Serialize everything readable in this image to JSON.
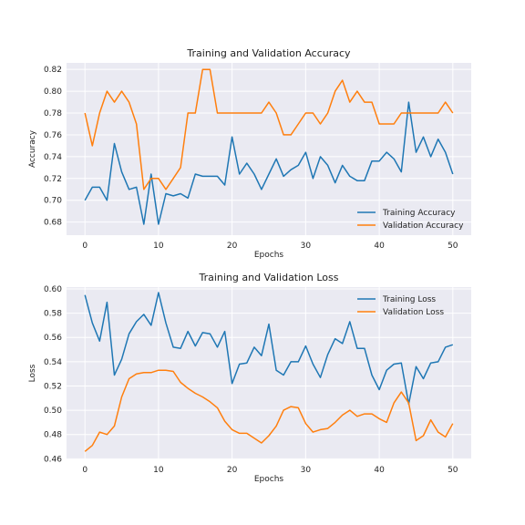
{
  "colors": {
    "plot_background": "#eaeaf2",
    "grid": "#ffffff",
    "training": "#1f77b4",
    "validation": "#ff7f0e"
  },
  "chart_data": [
    {
      "type": "line",
      "title": "Training and Validation Accuracy",
      "xlabel": "Epochs",
      "ylabel": "Accuracy",
      "xlim": [
        -2.5,
        52.5
      ],
      "ylim": [
        0.668,
        0.826
      ],
      "xticks": [
        0,
        10,
        20,
        30,
        40,
        50
      ],
      "yticks": [
        0.68,
        0.7,
        0.72,
        0.74,
        0.76,
        0.78,
        0.8,
        0.82
      ],
      "grid": true,
      "legend_position": "lower-right",
      "x": [
        0,
        1,
        2,
        3,
        4,
        5,
        6,
        7,
        8,
        9,
        10,
        11,
        12,
        13,
        14,
        15,
        16,
        17,
        18,
        19,
        20,
        21,
        22,
        23,
        24,
        25,
        26,
        27,
        28,
        29,
        30,
        31,
        32,
        33,
        34,
        35,
        36,
        37,
        38,
        39,
        40,
        41,
        42,
        43,
        44,
        45,
        46,
        47,
        48,
        49,
        50
      ],
      "series": [
        {
          "name": "Training Accuracy",
          "color": "#1f77b4",
          "values": [
            0.7,
            0.712,
            0.712,
            0.7,
            0.752,
            0.726,
            0.71,
            0.712,
            0.678,
            0.724,
            0.678,
            0.706,
            0.704,
            0.706,
            0.702,
            0.724,
            0.722,
            0.722,
            0.722,
            0.714,
            0.758,
            0.724,
            0.734,
            0.724,
            0.71,
            0.724,
            0.738,
            0.722,
            0.728,
            0.732,
            0.744,
            0.72,
            0.74,
            0.732,
            0.716,
            0.732,
            0.722,
            0.718,
            0.718,
            0.736,
            0.736,
            0.744,
            0.738,
            0.726,
            0.79,
            0.744,
            0.758,
            0.74,
            0.756,
            0.744,
            0.724
          ]
        },
        {
          "name": "Validation Accuracy",
          "color": "#ff7f0e",
          "values": [
            0.78,
            0.75,
            0.78,
            0.8,
            0.79,
            0.8,
            0.79,
            0.77,
            0.71,
            0.72,
            0.72,
            0.71,
            0.72,
            0.73,
            0.78,
            0.78,
            0.82,
            0.82,
            0.78,
            0.78,
            0.78,
            0.78,
            0.78,
            0.78,
            0.78,
            0.79,
            0.78,
            0.76,
            0.76,
            0.77,
            0.78,
            0.78,
            0.77,
            0.78,
            0.8,
            0.81,
            0.79,
            0.8,
            0.79,
            0.79,
            0.77,
            0.77,
            0.77,
            0.78,
            0.78,
            0.78,
            0.78,
            0.78,
            0.78,
            0.79,
            0.78
          ]
        }
      ]
    },
    {
      "type": "line",
      "title": "Training and Validation Loss",
      "xlabel": "Epochs",
      "ylabel": "Loss",
      "xlim": [
        -2.5,
        52.5
      ],
      "ylim": [
        0.4595,
        0.6015
      ],
      "xticks": [
        0,
        10,
        20,
        30,
        40,
        50
      ],
      "yticks": [
        0.46,
        0.48,
        0.5,
        0.52,
        0.54,
        0.56,
        0.58,
        0.6
      ],
      "grid": true,
      "legend_position": "upper-right",
      "x": [
        0,
        1,
        2,
        3,
        4,
        5,
        6,
        7,
        8,
        9,
        10,
        11,
        12,
        13,
        14,
        15,
        16,
        17,
        18,
        19,
        20,
        21,
        22,
        23,
        24,
        25,
        26,
        27,
        28,
        29,
        30,
        31,
        32,
        33,
        34,
        35,
        36,
        37,
        38,
        39,
        40,
        41,
        42,
        43,
        44,
        45,
        46,
        47,
        48,
        49,
        50
      ],
      "series": [
        {
          "name": "Training Loss",
          "color": "#1f77b4",
          "values": [
            0.595,
            0.572,
            0.557,
            0.589,
            0.529,
            0.542,
            0.563,
            0.573,
            0.579,
            0.57,
            0.597,
            0.572,
            0.552,
            0.551,
            0.565,
            0.553,
            0.564,
            0.563,
            0.552,
            0.565,
            0.522,
            0.538,
            0.539,
            0.552,
            0.545,
            0.571,
            0.533,
            0.529,
            0.54,
            0.54,
            0.553,
            0.538,
            0.527,
            0.546,
            0.559,
            0.555,
            0.573,
            0.551,
            0.551,
            0.529,
            0.517,
            0.533,
            0.538,
            0.539,
            0.505,
            0.536,
            0.526,
            0.539,
            0.54,
            0.552,
            0.554
          ]
        },
        {
          "name": "Validation Loss",
          "color": "#ff7f0e",
          "values": [
            0.466,
            0.471,
            0.482,
            0.48,
            0.487,
            0.511,
            0.526,
            0.53,
            0.531,
            0.531,
            0.533,
            0.533,
            0.532,
            0.523,
            0.518,
            0.514,
            0.511,
            0.507,
            0.502,
            0.491,
            0.484,
            0.481,
            0.481,
            0.477,
            0.473,
            0.479,
            0.487,
            0.5,
            0.503,
            0.502,
            0.489,
            0.482,
            0.484,
            0.485,
            0.49,
            0.496,
            0.5,
            0.495,
            0.497,
            0.497,
            0.493,
            0.49,
            0.506,
            0.515,
            0.506,
            0.475,
            0.479,
            0.492,
            0.482,
            0.478,
            0.489
          ]
        }
      ]
    }
  ]
}
